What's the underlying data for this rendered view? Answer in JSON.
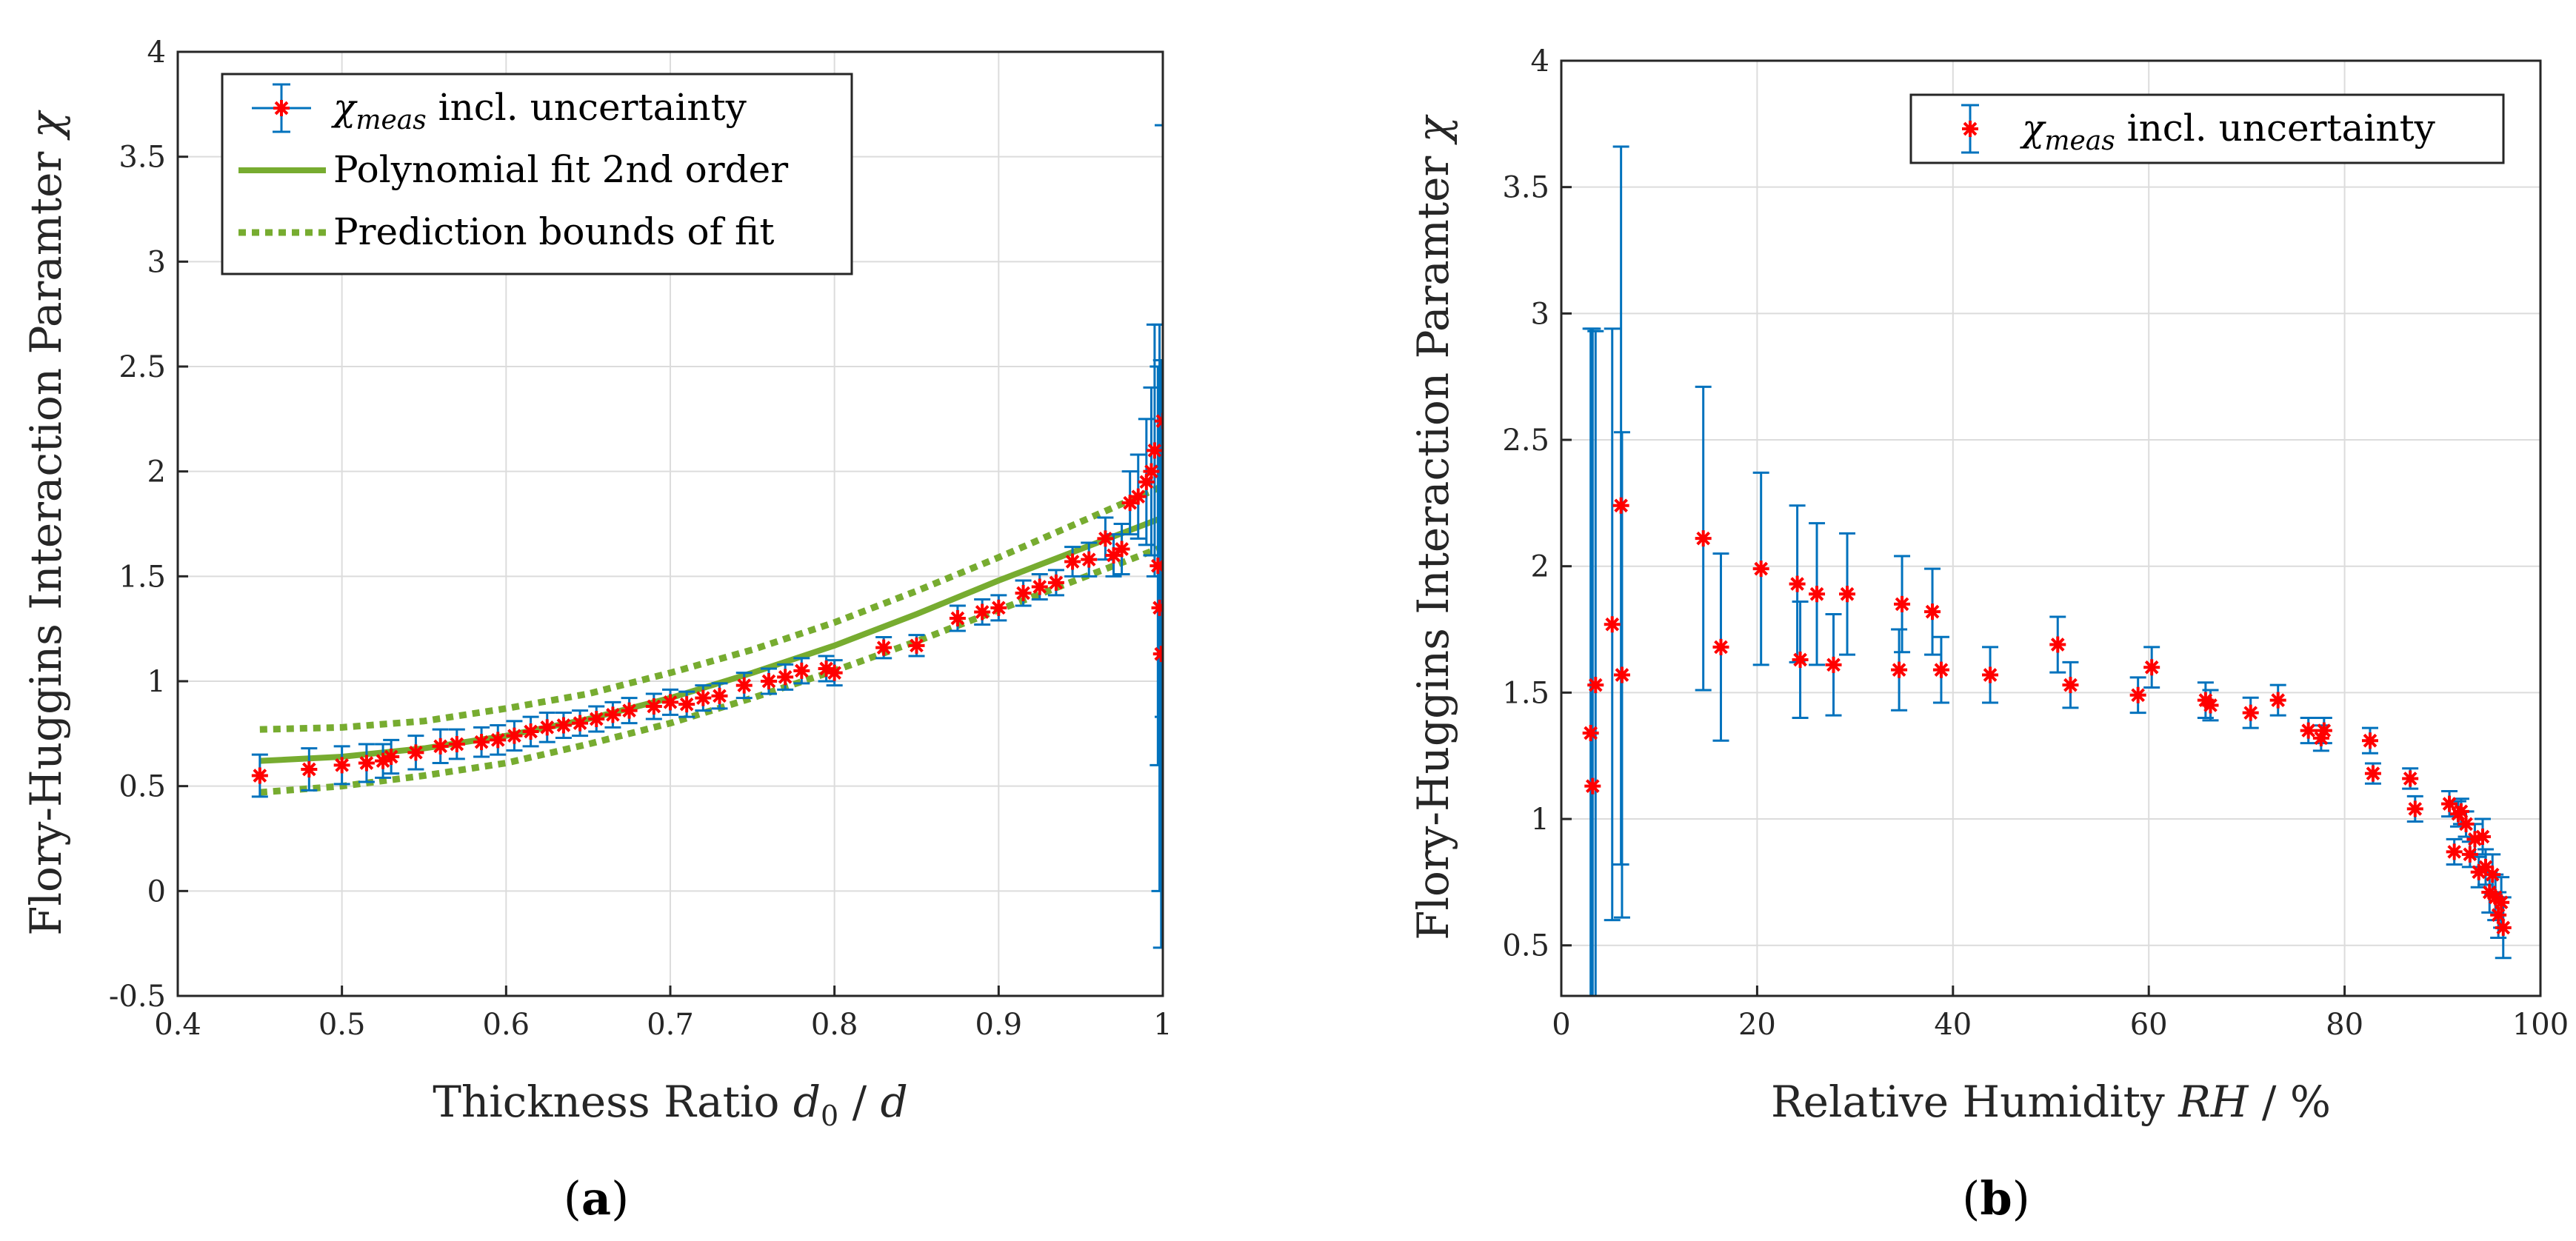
{
  "chart_data": [
    {
      "type": "scatter",
      "panel_label": "(a)",
      "xlabel": "Thickness Ratio d₀ / d",
      "ylabel": "Flory-Huggins Interaction Paramter χ",
      "xlim": [
        0.4,
        1.0
      ],
      "ylim": [
        -0.5,
        4.0
      ],
      "xticks": [
        "0.4",
        "0.5",
        "0.6",
        "0.7",
        "0.8",
        "0.9",
        "1"
      ],
      "yticks": [
        "-0.5",
        "0",
        "0.5",
        "1",
        "1.5",
        "2",
        "2.5",
        "3",
        "3.5",
        "4"
      ],
      "grid": true,
      "legend_position": "top-left",
      "legend": [
        {
          "label_main": "χ",
          "label_sub": "meas",
          "label_rest": " incl. uncertainty",
          "style": "marker-errorbar"
        },
        {
          "label": "Polynomial fit 2nd order",
          "style": "solid"
        },
        {
          "label": "Prediction bounds of fit",
          "style": "dotted"
        }
      ],
      "series": [
        {
          "name": "χmeas incl. uncertainty",
          "x": [
            0.45,
            0.48,
            0.5,
            0.515,
            0.525,
            0.53,
            0.545,
            0.56,
            0.57,
            0.585,
            0.595,
            0.605,
            0.615,
            0.625,
            0.635,
            0.645,
            0.655,
            0.665,
            0.675,
            0.69,
            0.7,
            0.71,
            0.72,
            0.73,
            0.745,
            0.76,
            0.77,
            0.78,
            0.795,
            0.8,
            0.83,
            0.85,
            0.875,
            0.89,
            0.9,
            0.915,
            0.925,
            0.935,
            0.945,
            0.955,
            0.965,
            0.97,
            0.975,
            0.98,
            0.985,
            0.99,
            0.993,
            0.995,
            0.997,
            0.998,
            0.999,
            1.0
          ],
          "y": [
            0.55,
            0.58,
            0.6,
            0.61,
            0.62,
            0.64,
            0.66,
            0.69,
            0.7,
            0.71,
            0.72,
            0.74,
            0.76,
            0.78,
            0.79,
            0.8,
            0.82,
            0.84,
            0.86,
            0.88,
            0.9,
            0.89,
            0.92,
            0.93,
            0.98,
            1.0,
            1.02,
            1.05,
            1.06,
            1.04,
            1.16,
            1.17,
            1.3,
            1.33,
            1.35,
            1.42,
            1.45,
            1.47,
            1.57,
            1.58,
            1.68,
            1.6,
            1.63,
            1.85,
            1.88,
            1.95,
            2.0,
            2.1,
            1.55,
            1.35,
            1.13,
            2.24
          ],
          "err": [
            0.1,
            0.1,
            0.09,
            0.09,
            0.08,
            0.08,
            0.08,
            0.08,
            0.07,
            0.07,
            0.07,
            0.07,
            0.07,
            0.07,
            0.06,
            0.06,
            0.06,
            0.06,
            0.06,
            0.06,
            0.06,
            0.06,
            0.06,
            0.06,
            0.06,
            0.06,
            0.06,
            0.06,
            0.06,
            0.06,
            0.05,
            0.05,
            0.06,
            0.06,
            0.06,
            0.06,
            0.06,
            0.06,
            0.07,
            0.08,
            0.1,
            0.1,
            0.12,
            0.15,
            0.2,
            0.3,
            0.4,
            0.6,
            0.95,
            1.35,
            1.4,
            1.41
          ]
        },
        {
          "name": "Polynomial fit 2nd order",
          "x": [
            0.45,
            0.5,
            0.55,
            0.6,
            0.65,
            0.7,
            0.75,
            0.8,
            0.85,
            0.9,
            0.95,
            1.0
          ],
          "y": [
            0.62,
            0.64,
            0.68,
            0.74,
            0.82,
            0.92,
            1.04,
            1.17,
            1.32,
            1.48,
            1.63,
            1.78
          ]
        },
        {
          "name": "Prediction bounds of fit (upper)",
          "x": [
            0.45,
            0.5,
            0.55,
            0.6,
            0.65,
            0.7,
            0.75,
            0.8,
            0.85,
            0.9,
            0.95,
            1.0
          ],
          "y": [
            0.77,
            0.78,
            0.81,
            0.87,
            0.94,
            1.04,
            1.15,
            1.28,
            1.43,
            1.59,
            1.76,
            1.93
          ]
        },
        {
          "name": "Prediction bounds of fit (lower)",
          "x": [
            0.45,
            0.5,
            0.55,
            0.6,
            0.65,
            0.7,
            0.75,
            0.8,
            0.85,
            0.9,
            0.95,
            1.0
          ],
          "y": [
            0.47,
            0.5,
            0.55,
            0.61,
            0.7,
            0.8,
            0.92,
            1.05,
            1.19,
            1.34,
            1.49,
            1.64
          ]
        }
      ],
      "colors": {
        "points": "#ff0000",
        "errorbars": "#0072bd",
        "fit": "#77ac30"
      }
    },
    {
      "type": "scatter",
      "panel_label": "(b)",
      "xlabel": "Relative Humidity RH / %",
      "ylabel": "Flory-Huggins Interaction Paramter χ",
      "xlim": [
        0,
        100
      ],
      "ylim": [
        0.3,
        4.0
      ],
      "xticks": [
        "0",
        "20",
        "40",
        "60",
        "80",
        "100"
      ],
      "yticks": [
        "0.5",
        "1",
        "1.5",
        "2",
        "2.5",
        "3",
        "3.5",
        "4"
      ],
      "grid": true,
      "legend_position": "top-right",
      "legend": [
        {
          "label_main": "χ",
          "label_sub": "meas",
          "label_rest": " incl. uncertainty",
          "style": "marker-errorbar"
        }
      ],
      "series": [
        {
          "name": "χmeas incl. uncertainty",
          "x": [
            3.0,
            3.2,
            3.5,
            5.2,
            6.1,
            6.2,
            14.5,
            16.3,
            20.4,
            24.1,
            24.4,
            26.1,
            27.8,
            29.2,
            34.5,
            34.8,
            37.9,
            38.8,
            43.8,
            50.7,
            52.0,
            58.9,
            60.3,
            65.8,
            66.3,
            70.4,
            73.2,
            76.3,
            77.6,
            77.9,
            82.6,
            82.9,
            86.7,
            87.2,
            90.7,
            91.2,
            91.6,
            91.9,
            92.4,
            92.8,
            93.3,
            93.7,
            94.1,
            94.4,
            94.8,
            95.1,
            95.4,
            95.7,
            96.0,
            96.2
          ],
          "y": [
            1.34,
            1.13,
            1.53,
            1.77,
            2.24,
            1.57,
            2.11,
            1.68,
            1.99,
            1.93,
            1.63,
            1.89,
            1.61,
            1.89,
            1.59,
            1.85,
            1.82,
            1.59,
            1.57,
            1.69,
            1.53,
            1.49,
            1.6,
            1.47,
            1.45,
            1.42,
            1.47,
            1.35,
            1.32,
            1.35,
            1.31,
            1.18,
            1.16,
            1.04,
            1.06,
            0.87,
            1.02,
            1.03,
            0.98,
            0.86,
            0.92,
            0.79,
            0.93,
            0.81,
            0.71,
            0.78,
            0.69,
            0.62,
            0.67,
            0.57
          ],
          "err": [
            1.6,
            1.81,
            1.4,
            1.17,
            1.42,
            0.96,
            0.6,
            0.37,
            0.38,
            0.31,
            0.23,
            0.28,
            0.2,
            0.24,
            0.16,
            0.19,
            0.17,
            0.13,
            0.11,
            0.11,
            0.09,
            0.07,
            0.08,
            0.07,
            0.06,
            0.06,
            0.06,
            0.05,
            0.05,
            0.05,
            0.05,
            0.04,
            0.04,
            0.05,
            0.05,
            0.05,
            0.05,
            0.05,
            0.05,
            0.05,
            0.06,
            0.06,
            0.07,
            0.07,
            0.08,
            0.08,
            0.09,
            0.09,
            0.1,
            0.12
          ]
        }
      ],
      "colors": {
        "points": "#ff0000",
        "errorbars": "#0072bd"
      }
    }
  ]
}
